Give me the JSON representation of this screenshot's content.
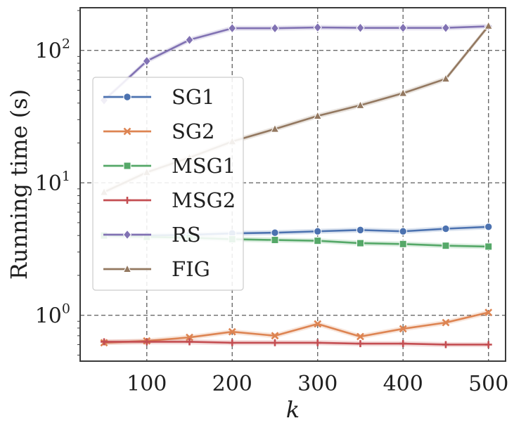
{
  "chart_data": {
    "type": "line",
    "title": "",
    "xlabel": "k",
    "ylabel": "Running time (s)",
    "yscale": "log",
    "xlim": [
      22,
      520
    ],
    "ylim": [
      0.45,
      210
    ],
    "xticks": [
      100,
      200,
      300,
      400,
      500
    ],
    "xtick_labels": [
      "100",
      "200",
      "300",
      "400",
      "500"
    ],
    "yticks": [
      1,
      10,
      100
    ],
    "ytick_labels": [
      {
        "base": "10",
        "exp": "0"
      },
      {
        "base": "10",
        "exp": "1"
      },
      {
        "base": "10",
        "exp": "2"
      }
    ],
    "grid": true,
    "legend_position": "center-left",
    "x": [
      50,
      100,
      150,
      200,
      250,
      300,
      350,
      400,
      450,
      500
    ],
    "series": [
      {
        "name": "SG1",
        "color": "#4c72b0",
        "marker": "circle",
        "values": [
          4.0,
          4.0,
          4.05,
          4.15,
          4.2,
          4.3,
          4.4,
          4.3,
          4.5,
          4.65
        ]
      },
      {
        "name": "SG2",
        "color": "#dd8452",
        "marker": "x",
        "values": [
          0.62,
          0.64,
          0.68,
          0.75,
          0.7,
          0.86,
          0.69,
          0.79,
          0.88,
          1.05
        ]
      },
      {
        "name": "MSG1",
        "color": "#55a868",
        "marker": "square",
        "values": [
          4.0,
          3.9,
          3.85,
          3.75,
          3.7,
          3.65,
          3.5,
          3.45,
          3.35,
          3.3
        ]
      },
      {
        "name": "MSG2",
        "color": "#c44e52",
        "marker": "plus",
        "values": [
          0.63,
          0.63,
          0.63,
          0.62,
          0.62,
          0.62,
          0.61,
          0.61,
          0.6,
          0.6
        ]
      },
      {
        "name": "RS",
        "color": "#8172b3",
        "marker": "diamond",
        "values": [
          42,
          83,
          120,
          147,
          147,
          149,
          148,
          148,
          148,
          152
        ]
      },
      {
        "name": "FIG",
        "color": "#937860",
        "marker": "triangle",
        "values": [
          8.5,
          12,
          15.5,
          20.5,
          25.5,
          32,
          38.5,
          47.5,
          61,
          153
        ]
      }
    ]
  }
}
